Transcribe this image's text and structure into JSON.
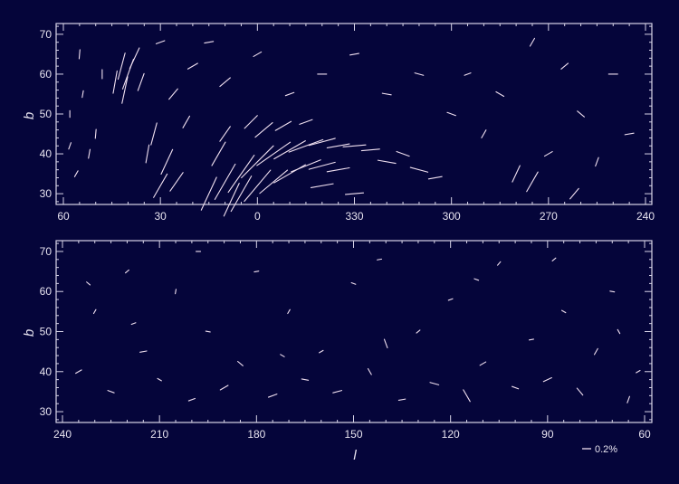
{
  "chart_data": [
    {
      "type": "vector-map",
      "panel": "top",
      "xlabel": "",
      "ylabel": "b",
      "xticks": [
        "60",
        "30",
        "0",
        "330",
        "300",
        "270",
        "240"
      ],
      "yticks": [
        "30",
        "40",
        "50",
        "60",
        "70"
      ],
      "xlim": [
        62,
        -122
      ],
      "ylim": [
        27.3,
        72.7
      ],
      "color": "#f0e0f0",
      "vectors_fields": [
        "l",
        "b",
        "p_percent",
        "angle_deg"
      ],
      "vectors": [
        [
          42,
          62,
          0.6,
          75
        ],
        [
          40,
          60,
          0.7,
          70
        ],
        [
          44,
          58,
          0.5,
          80
        ],
        [
          38,
          64,
          0.5,
          65
        ],
        [
          41,
          56,
          0.6,
          78
        ],
        [
          36,
          58,
          0.4,
          70
        ],
        [
          55,
          65,
          0.2,
          85
        ],
        [
          58,
          50,
          0.15,
          90
        ],
        [
          52,
          40,
          0.2,
          80
        ],
        [
          56,
          35,
          0.15,
          60
        ],
        [
          50,
          45,
          0.2,
          85
        ],
        [
          48,
          60,
          0.2,
          90
        ],
        [
          54,
          55,
          0.15,
          80
        ],
        [
          58,
          42,
          0.15,
          70
        ],
        [
          32,
          45,
          0.5,
          75
        ],
        [
          28,
          38,
          0.6,
          65
        ],
        [
          25,
          33,
          0.5,
          55
        ],
        [
          30,
          32,
          0.6,
          60
        ],
        [
          34,
          40,
          0.4,
          80
        ],
        [
          22,
          48,
          0.3,
          60
        ],
        [
          26,
          55,
          0.3,
          50
        ],
        [
          20,
          62,
          0.25,
          30
        ],
        [
          15,
          68,
          0.2,
          10
        ],
        [
          30,
          68,
          0.2,
          20
        ],
        [
          15,
          30,
          0.8,
          65
        ],
        [
          10,
          33,
          0.9,
          60
        ],
        [
          5,
          35,
          1.0,
          55
        ],
        [
          0,
          38,
          1.0,
          45
        ],
        [
          355,
          40,
          0.9,
          35
        ],
        [
          350,
          41,
          0.8,
          30
        ],
        [
          345,
          42,
          0.8,
          20
        ],
        [
          340,
          43,
          0.6,
          15
        ],
        [
          335,
          42,
          0.5,
          10
        ],
        [
          330,
          42,
          0.5,
          5
        ],
        [
          325,
          41,
          0.4,
          5
        ],
        [
          12,
          40,
          0.6,
          60
        ],
        [
          5,
          30,
          0.9,
          60
        ],
        [
          0,
          32,
          0.9,
          50
        ],
        [
          355,
          33,
          0.8,
          40
        ],
        [
          350,
          35,
          0.8,
          30
        ],
        [
          345,
          37,
          0.7,
          22
        ],
        [
          340,
          37,
          0.6,
          15
        ],
        [
          335,
          36,
          0.5,
          10
        ],
        [
          10,
          45,
          0.4,
          55
        ],
        [
          2,
          48,
          0.4,
          45
        ],
        [
          358,
          46,
          0.5,
          40
        ],
        [
          352,
          47,
          0.4,
          30
        ],
        [
          345,
          48,
          0.3,
          20
        ],
        [
          320,
          38,
          0.4,
          -10
        ],
        [
          315,
          40,
          0.3,
          -20
        ],
        [
          310,
          36,
          0.4,
          -15
        ],
        [
          305,
          34,
          0.3,
          10
        ],
        [
          340,
          32,
          0.5,
          10
        ],
        [
          330,
          30,
          0.4,
          5
        ],
        [
          8,
          28.5,
          0.8,
          65
        ],
        [
          290,
          45,
          0.2,
          60
        ],
        [
          280,
          35,
          0.4,
          65
        ],
        [
          275,
          33,
          0.5,
          60
        ],
        [
          270,
          40,
          0.2,
          30
        ],
        [
          260,
          50,
          0.2,
          -40
        ],
        [
          255,
          38,
          0.2,
          70
        ],
        [
          250,
          60,
          0.2,
          0
        ],
        [
          265,
          62,
          0.2,
          40
        ],
        [
          285,
          55,
          0.2,
          -30
        ],
        [
          295,
          60,
          0.15,
          20
        ],
        [
          300,
          50,
          0.2,
          -20
        ],
        [
          245,
          45,
          0.2,
          10
        ],
        [
          310,
          60,
          0.2,
          -15
        ],
        [
          320,
          55,
          0.2,
          -10
        ],
        [
          330,
          65,
          0.2,
          10
        ],
        [
          340,
          60,
          0.2,
          0
        ],
        [
          350,
          55,
          0.2,
          20
        ],
        [
          0,
          65,
          0.2,
          30
        ],
        [
          10,
          58,
          0.3,
          40
        ],
        [
          275,
          68,
          0.2,
          60
        ],
        [
          262,
          30,
          0.3,
          50
        ]
      ]
    },
    {
      "type": "vector-map",
      "panel": "bottom",
      "xlabel": "l",
      "ylabel": "b",
      "xticks": [
        "240",
        "210",
        "180",
        "150",
        "120",
        "90",
        "60"
      ],
      "yticks": [
        "30",
        "40",
        "50",
        "60",
        "70"
      ],
      "xlim": [
        241.9,
        58
      ],
      "ylim": [
        27.3,
        72.7
      ],
      "color": "#f0e0f0",
      "vectors_fields": [
        "l",
        "b",
        "p_percent",
        "angle_deg"
      ],
      "vectors": [
        [
          235,
          40,
          0.15,
          30
        ],
        [
          230,
          55,
          0.1,
          60
        ],
        [
          225,
          35,
          0.15,
          -20
        ],
        [
          220,
          65,
          0.1,
          40
        ],
        [
          215,
          45,
          0.15,
          10
        ],
        [
          210,
          38,
          0.1,
          -30
        ],
        [
          205,
          60,
          0.1,
          80
        ],
        [
          200,
          33,
          0.15,
          20
        ],
        [
          195,
          50,
          0.1,
          -10
        ],
        [
          190,
          36,
          0.2,
          30
        ],
        [
          185,
          42,
          0.15,
          -40
        ],
        [
          180,
          65,
          0.1,
          10
        ],
        [
          175,
          34,
          0.2,
          20
        ],
        [
          170,
          55,
          0.1,
          60
        ],
        [
          165,
          38,
          0.15,
          -10
        ],
        [
          160,
          45,
          0.1,
          30
        ],
        [
          155,
          35,
          0.2,
          15
        ],
        [
          150,
          62,
          0.1,
          -20
        ],
        [
          145,
          40,
          0.15,
          -60
        ],
        [
          140,
          47,
          0.2,
          -70
        ],
        [
          135,
          33,
          0.15,
          10
        ],
        [
          130,
          50,
          0.1,
          40
        ],
        [
          125,
          37,
          0.2,
          -15
        ],
        [
          120,
          58,
          0.1,
          20
        ],
        [
          115,
          34,
          0.3,
          -60
        ],
        [
          110,
          42,
          0.15,
          30
        ],
        [
          105,
          67,
          0.1,
          50
        ],
        [
          100,
          36,
          0.15,
          -20
        ],
        [
          95,
          48,
          0.1,
          10
        ],
        [
          90,
          38,
          0.2,
          25
        ],
        [
          85,
          55,
          0.1,
          -30
        ],
        [
          80,
          35,
          0.2,
          -50
        ],
        [
          75,
          45,
          0.15,
          60
        ],
        [
          70,
          60,
          0.1,
          -10
        ],
        [
          65,
          33,
          0.15,
          70
        ],
        [
          62,
          40,
          0.1,
          30
        ],
        [
          232,
          62,
          0.1,
          -40
        ],
        [
          218,
          52,
          0.1,
          20
        ],
        [
          198,
          70,
          0.1,
          0
        ],
        [
          172,
          44,
          0.1,
          -30
        ],
        [
          142,
          68,
          0.1,
          10
        ],
        [
          112,
          63,
          0.1,
          -20
        ],
        [
          88,
          68,
          0.1,
          40
        ],
        [
          68,
          50,
          0.1,
          -60
        ]
      ]
    }
  ],
  "legend": {
    "label": "0.2%",
    "value_percent": 0.2
  },
  "colors": {
    "background": "#05053a",
    "axes": "#d8d4e8",
    "vectors": "#f0e0f0"
  }
}
